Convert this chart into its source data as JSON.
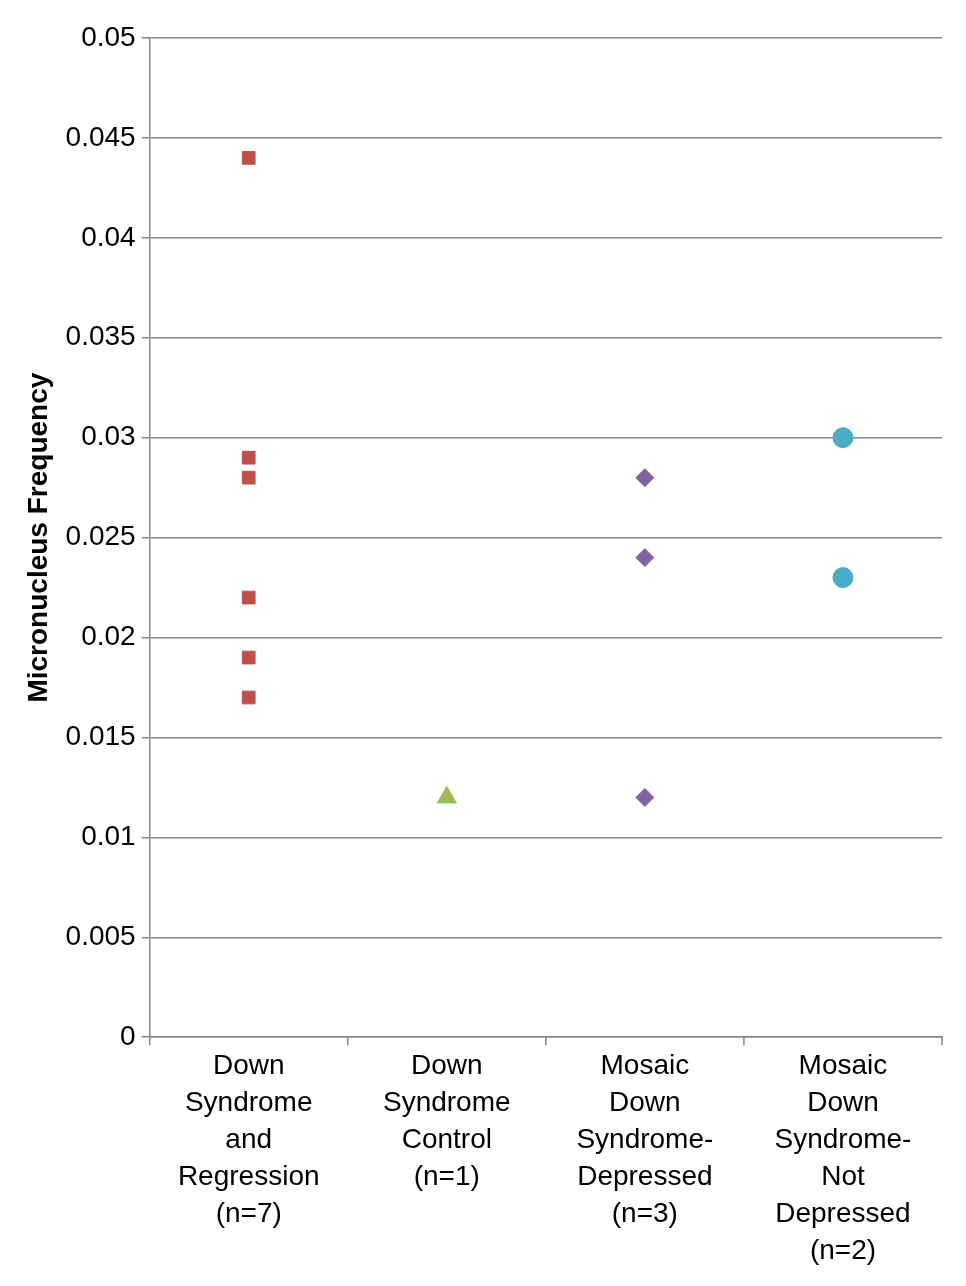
{
  "chart_data": {
    "type": "scatter",
    "ylabel": "Micronucleus Frequency",
    "categories": [
      "Down Syndrome and Regression (n=7)",
      "Down Syndrome Control (n=1)",
      "Mosaic Down Syndrome-Depressed (n=3)",
      "Mosaic Down Syndrome-Not Depressed (n=2)"
    ],
    "series": [
      {
        "color": "#c0504d",
        "marker": "square",
        "x": [
          "Down Syndrome and Regression (n=7)",
          "Down Syndrome and Regression (n=7)",
          "Down Syndrome and Regression (n=7)",
          "Down Syndrome and Regression (n=7)",
          "Down Syndrome and Regression (n=7)",
          "Down Syndrome and Regression (n=7)"
        ],
        "values": [
          0.044,
          0.029,
          0.028,
          0.022,
          0.019,
          0.017
        ]
      },
      {
        "color": "#9bbb59",
        "marker": "triangle",
        "x": [
          "Down Syndrome Control (n=1)"
        ],
        "values": [
          0.012
        ]
      },
      {
        "color": "#8064a2",
        "marker": "diamond",
        "x": [
          "Mosaic Down Syndrome-Depressed (n=3)",
          "Mosaic Down Syndrome-Depressed (n=3)",
          "Mosaic Down Syndrome-Depressed (n=3)"
        ],
        "values": [
          0.028,
          0.024,
          0.012
        ]
      },
      {
        "color": "#4bacc6",
        "marker": "circle",
        "x": [
          "Mosaic Down Syndrome-Not Depressed (n=2)",
          "Mosaic Down Syndrome-Not Depressed (n=2)"
        ],
        "values": [
          0.03,
          0.023
        ]
      }
    ],
    "ylim": [
      0,
      0.05
    ],
    "yticks": [
      0,
      0.005,
      0.01,
      0.015,
      0.02,
      0.025,
      0.03,
      0.035,
      0.04,
      0.045,
      0.05
    ],
    "grid": "y",
    "legend": false
  }
}
